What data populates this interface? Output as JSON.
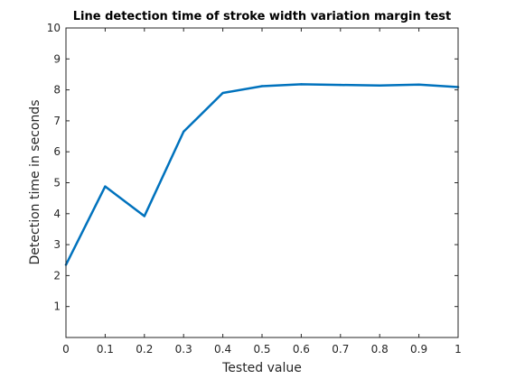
{
  "chart_data": {
    "type": "line",
    "title": "Line detection time of stroke width variation margin test",
    "xlabel": "Tested value",
    "ylabel": "Detection time in seconds",
    "xlim": [
      0,
      1
    ],
    "ylim": [
      0,
      10
    ],
    "x_ticks": [
      0,
      0.1,
      0.2,
      0.3,
      0.4,
      0.5,
      0.6,
      0.7,
      0.8,
      0.9,
      1
    ],
    "x_tick_labels": [
      "0",
      "0.1",
      "0.2",
      "0.3",
      "0.4",
      "0.5",
      "0.6",
      "0.7",
      "0.8",
      "0.9",
      "1"
    ],
    "y_ticks": [
      1,
      2,
      3,
      4,
      5,
      6,
      7,
      8,
      9,
      10
    ],
    "y_tick_labels": [
      "1",
      "2",
      "3",
      "4",
      "5",
      "6",
      "7",
      "8",
      "9",
      "10"
    ],
    "grid": false,
    "legend": "none",
    "series": [
      {
        "color": "#0072BD",
        "x": [
          0,
          0.1,
          0.2,
          0.3,
          0.4,
          0.5,
          0.6,
          0.7,
          0.8,
          0.9,
          1
        ],
        "y": [
          2.35,
          4.88,
          3.92,
          6.65,
          7.9,
          8.12,
          8.18,
          8.16,
          8.14,
          8.17,
          8.09
        ]
      }
    ]
  }
}
